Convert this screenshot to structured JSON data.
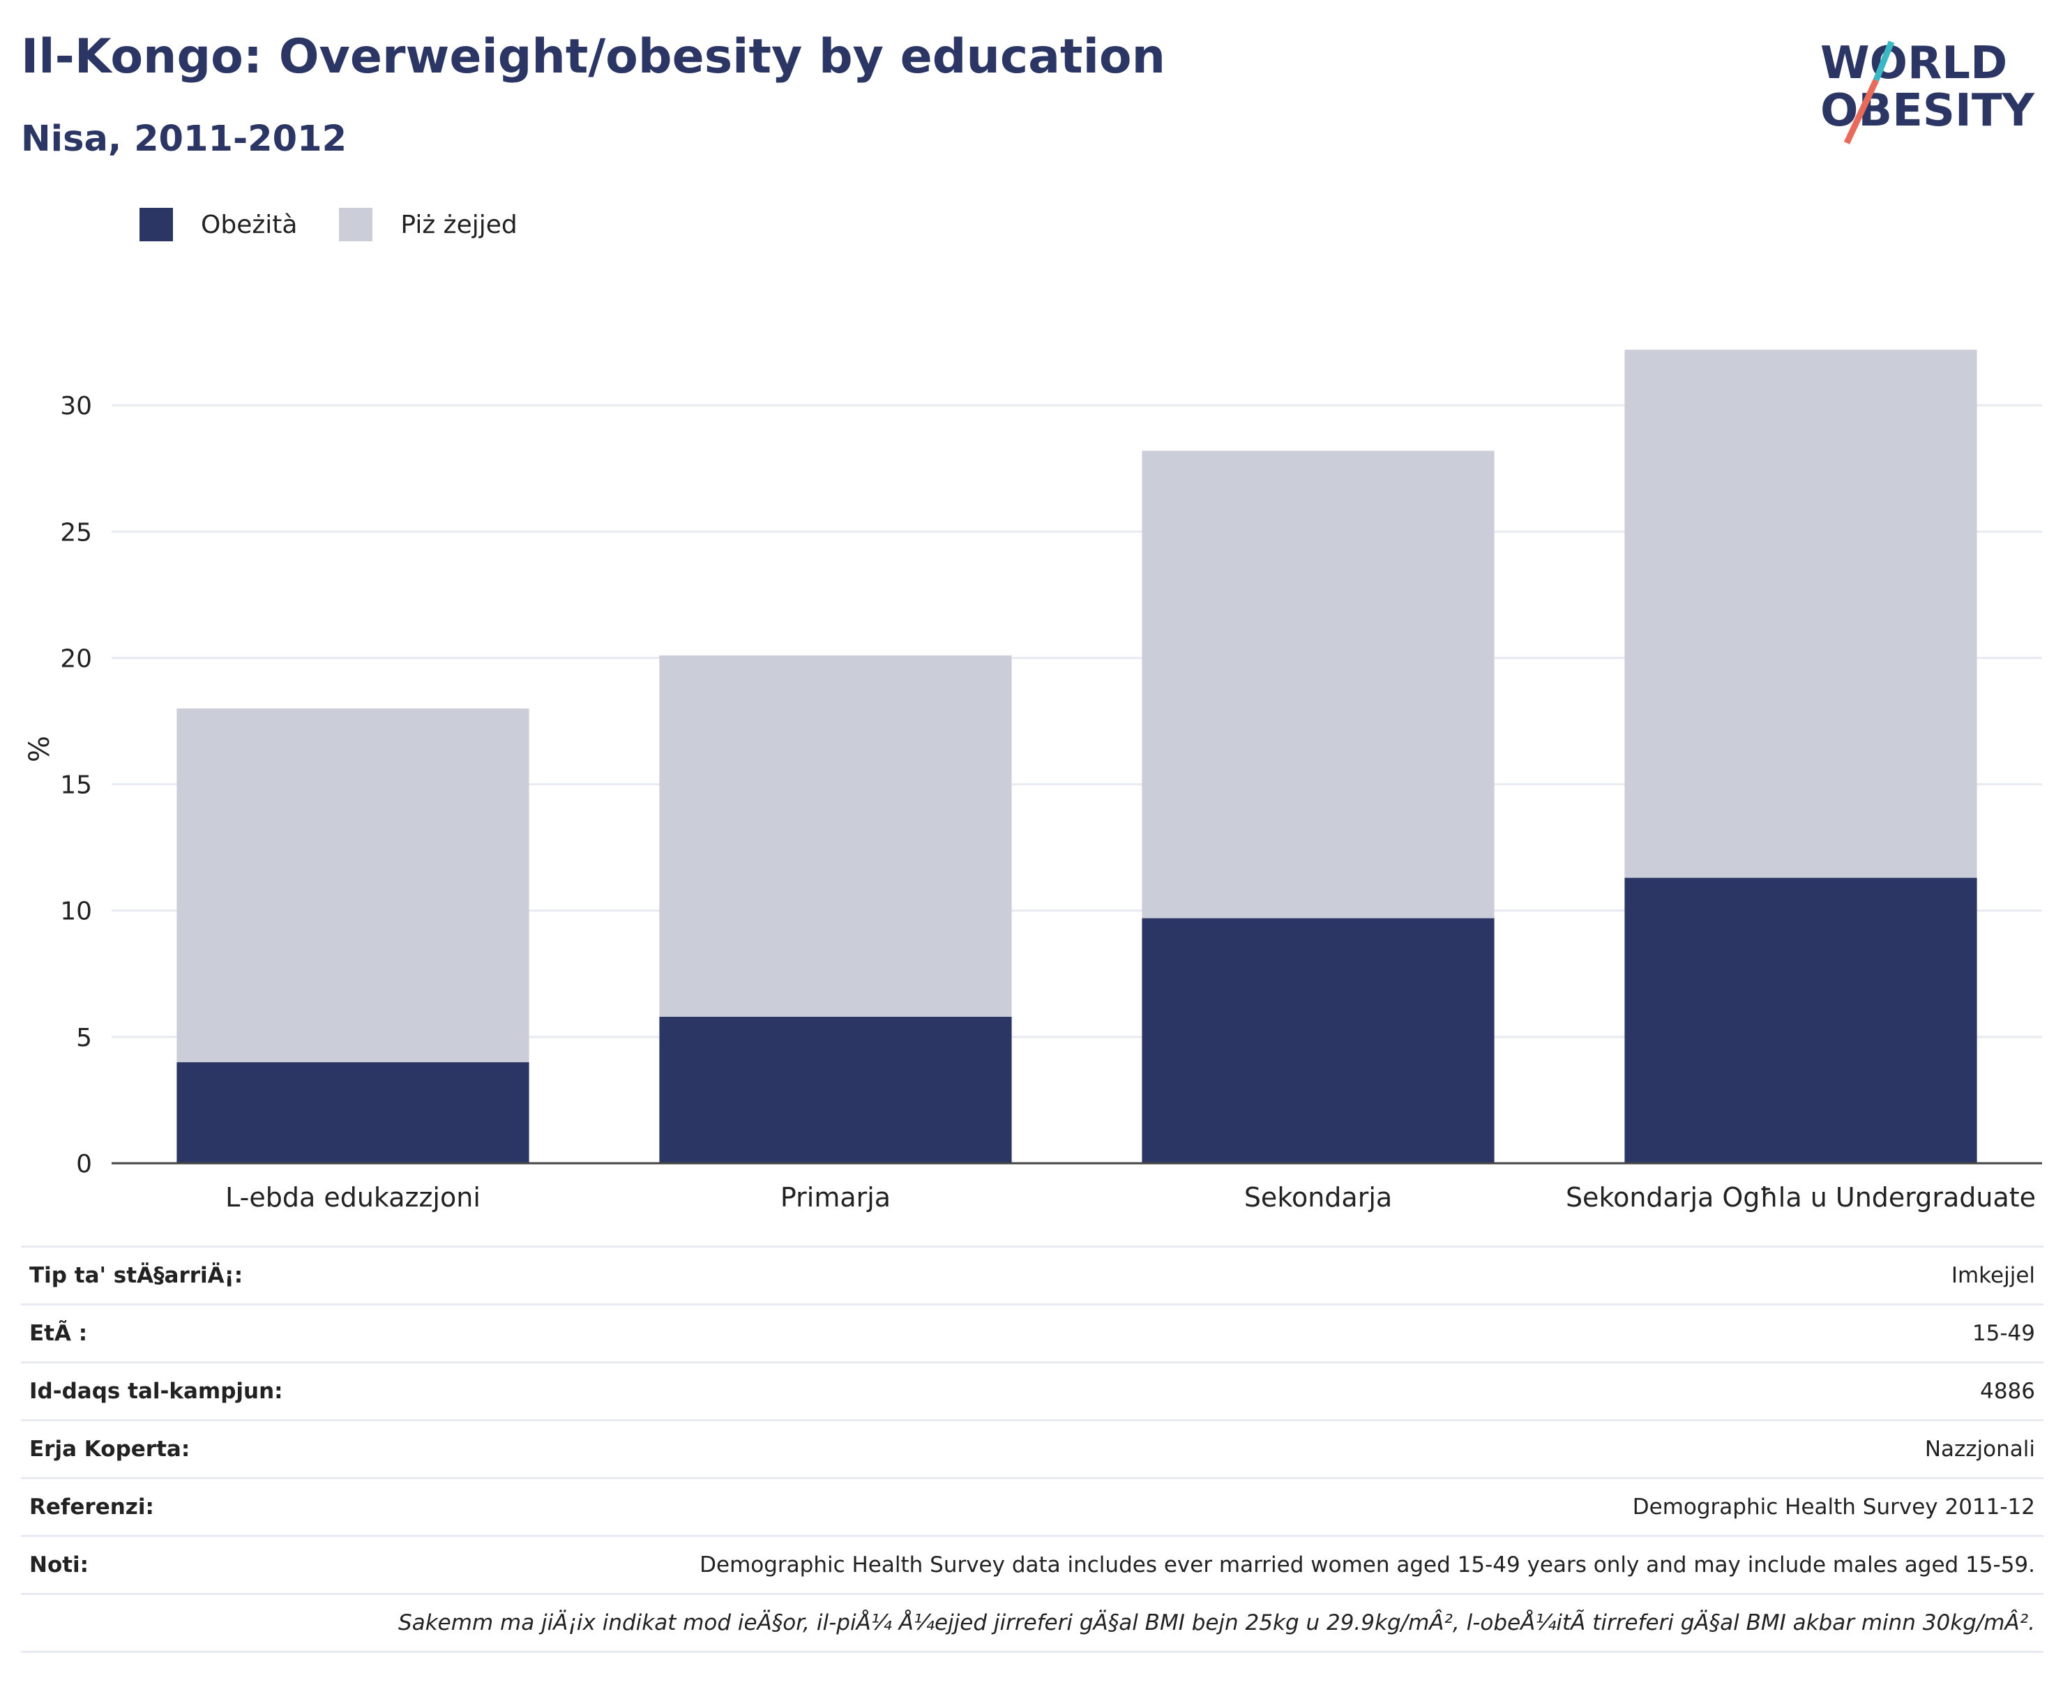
{
  "header": {
    "title": "Il-Kongo: Overweight/obesity by education",
    "subtitle": "Nisa, 2011-2012"
  },
  "logo": {
    "line1": "WORLD",
    "line2": "OBESITY",
    "colors": {
      "text": "#2b3664",
      "slash_top": "#3bb8c4",
      "slash_bottom": "#e86a5a"
    }
  },
  "legend": [
    {
      "label": "Obeżità",
      "color": "#2b3664"
    },
    {
      "label": "Piż żejjed",
      "color": "#cbcdd8"
    }
  ],
  "chart_data": {
    "type": "bar",
    "stacked": true,
    "categories": [
      "L-ebda edukazzjoni",
      "Primarja",
      "Sekondarja",
      "Sekondarja Ogħla u Undergraduate"
    ],
    "series": [
      {
        "name": "Obeżità",
        "values": [
          4.0,
          5.8,
          9.7,
          11.3
        ],
        "color": "#2b3664"
      },
      {
        "name": "Piż żejjed",
        "values": [
          14.0,
          14.3,
          18.5,
          20.9
        ],
        "color": "#cbcdd8"
      }
    ],
    "ylabel": "%",
    "yticks": [
      0,
      5,
      10,
      15,
      20,
      25,
      30
    ],
    "ylim": [
      0,
      35
    ],
    "grid": true,
    "legend_position": "top-left"
  },
  "info": {
    "rows": [
      {
        "key": "Tip ta' stÄ§arriÄ¡:",
        "value": "Imkejjel"
      },
      {
        "key": "EtÃ :",
        "value": "15-49"
      },
      {
        "key": "Id-daqs tal-kampjun:",
        "value": "4886"
      },
      {
        "key": "Erja Koperta:",
        "value": "Nazzjonali"
      },
      {
        "key": "Referenzi:",
        "value": "Demographic Health Survey 2011-12"
      },
      {
        "key": "Noti:",
        "value": "Demographic Health Survey data includes ever married women aged 15-49 years only and may include males aged 15-59."
      }
    ],
    "note_extra": "Sakemm ma jiÄ¡ix indikat mod ieÄ§or, il-piÅ¼ Å¼ejjed jirreferi gÄ§al BMI bejn 25kg u 29.9kg/mÂ², l-obeÅ¼itÃ  tirreferi gÄ§al BMI akbar minn 30kg/mÂ²."
  }
}
